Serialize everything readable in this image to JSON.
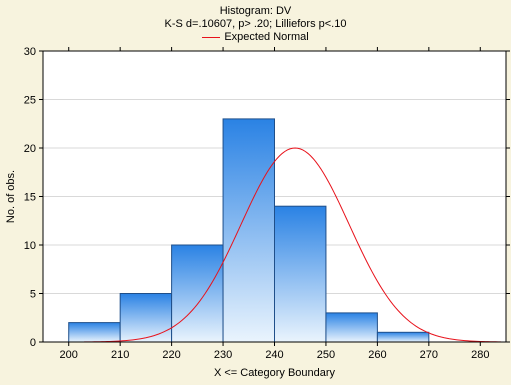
{
  "chart_data": {
    "type": "bar",
    "title": "Histogram: DV",
    "subtitle": "K-S d=.10607, p> .20; Lilliefors p<.10",
    "legend": [
      {
        "label": "Expected Normal",
        "color": "#e8121b"
      }
    ],
    "xlabel": "X <= Category Boundary",
    "ylabel": "No. of obs.",
    "xlim": [
      195,
      285
    ],
    "ylim": [
      0,
      30
    ],
    "x_ticks": [
      200,
      210,
      220,
      230,
      240,
      250,
      260,
      270,
      280
    ],
    "y_ticks": [
      0,
      5,
      10,
      15,
      20,
      25,
      30
    ],
    "bin_width": 10,
    "bin_upper_bounds": [
      210,
      220,
      230,
      240,
      250,
      260,
      270,
      280
    ],
    "values": [
      2,
      5,
      10,
      23,
      14,
      3,
      1,
      0
    ],
    "expected_normal": {
      "mean": 244,
      "peak": 20,
      "sd": 10.5
    },
    "grid": true,
    "legend_position": "top-center"
  },
  "colors": {
    "background": "#f7f3de",
    "plot_background": "#ffffff",
    "bar_top": "#2a82e4",
    "bar_bottom": "#eaf4fd",
    "bar_stroke": "#1f4f8a",
    "curve": "#e8121b",
    "grid": "#d9d9d9"
  }
}
